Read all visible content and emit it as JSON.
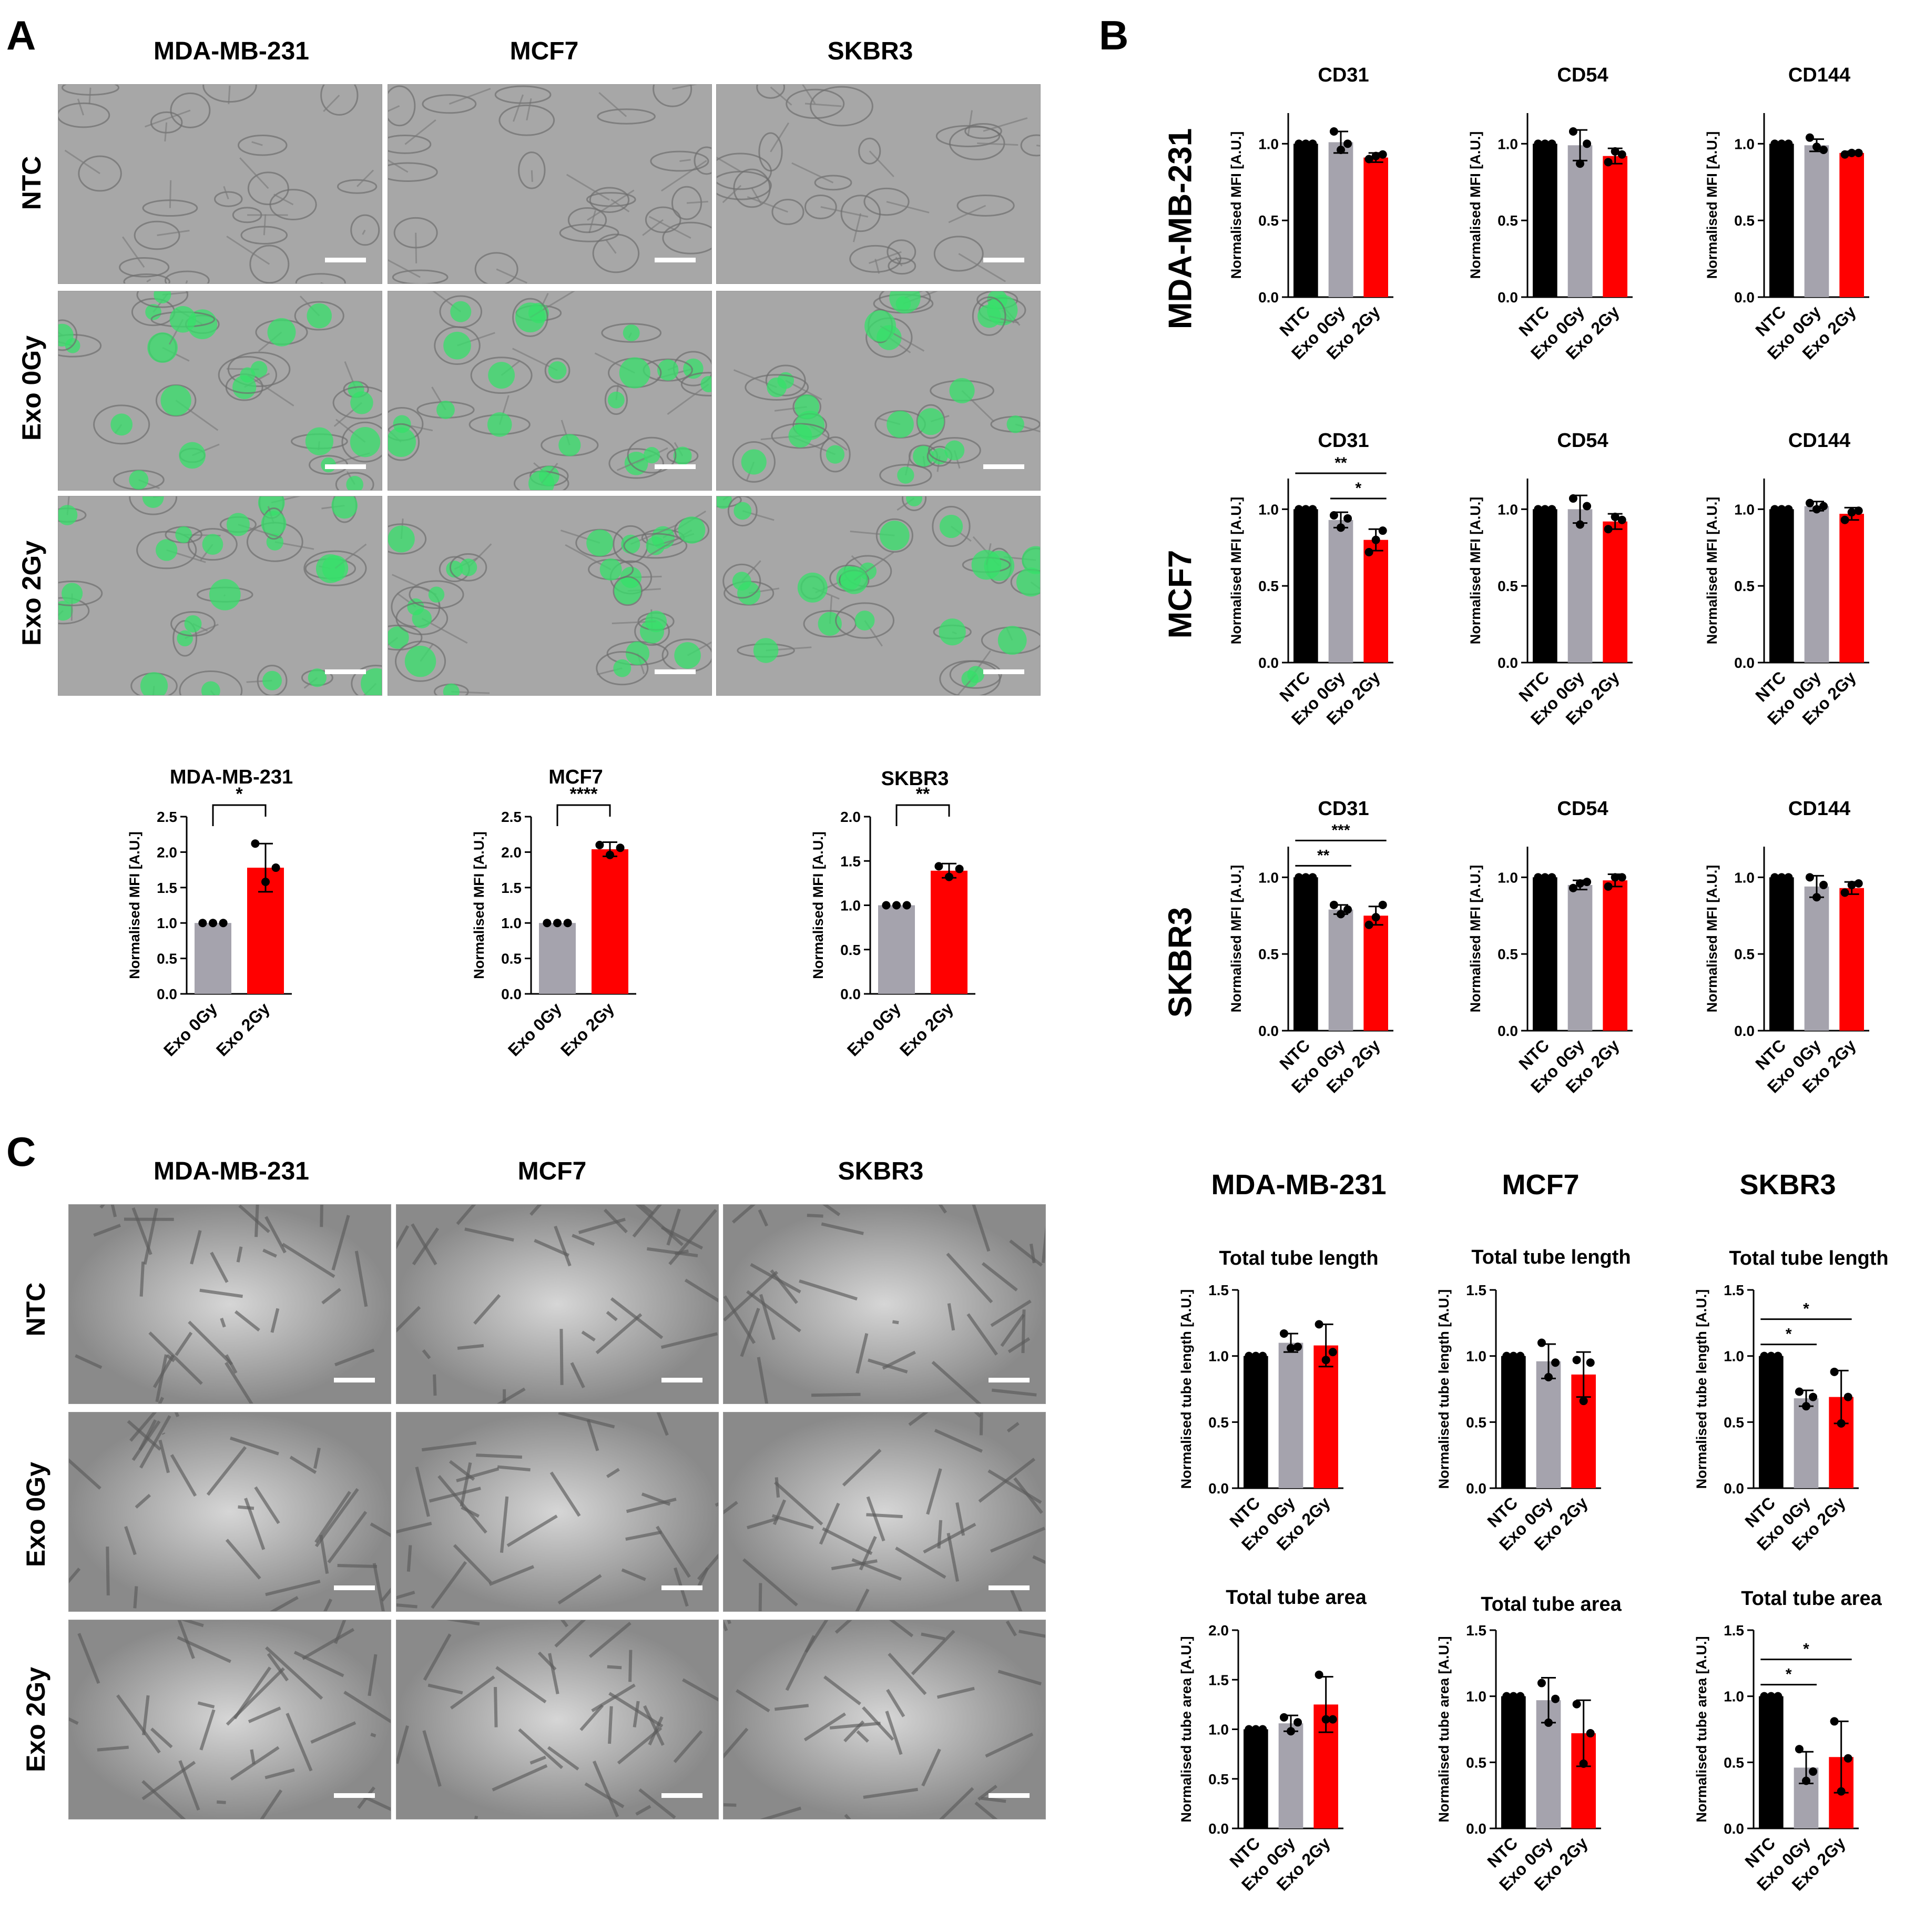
{
  "panels": {
    "a": "A",
    "b": "B",
    "c": "C"
  },
  "panel_a": {
    "columns": [
      "MDA-MB-231",
      "MCF7",
      "SKBR3"
    ],
    "rows": [
      "NTC",
      "Exo 0Gy",
      "Exo 2Gy"
    ]
  },
  "panel_b": {
    "rows": [
      "MDA-MB-231",
      "MCF7",
      "SKBR3"
    ]
  },
  "panel_c": {
    "columns": [
      "MDA-MB-231",
      "MCF7",
      "SKBR3"
    ],
    "rows": [
      "NTC",
      "Exo 0Gy",
      "Exo 2Gy"
    ],
    "chart_columns": [
      "MDA-MB-231",
      "MCF7",
      "SKBR3"
    ]
  },
  "colors": {
    "NTC": "#000000",
    "Exo 0Gy": "#a5a3ad",
    "Exo 2Gy": "#ff0000",
    "fluorescence": "#35e06a"
  },
  "chart_data": [
    {
      "id": "a1",
      "type": "bar",
      "title": "MDA-MB-231",
      "ylabel": "Normalised MFI [A.U.]",
      "ylim": [
        0,
        2.5
      ],
      "ticks": [
        0.0,
        0.5,
        1.0,
        1.5,
        2.0,
        2.5
      ],
      "categories": [
        "Exo 0Gy",
        "Exo 2Gy"
      ],
      "values": [
        1.0,
        1.78
      ],
      "errors": [
        0.0,
        0.34
      ],
      "points": [
        [
          1.0,
          1.0,
          1.0
        ],
        [
          2.12,
          1.58,
          1.78
        ]
      ],
      "sig": [
        {
          "from": 0,
          "to": 1,
          "label": "*"
        }
      ]
    },
    {
      "id": "a2",
      "type": "bar",
      "title": "MCF7",
      "ylabel": "Normalised MFI [A.U.]",
      "ylim": [
        0,
        2.5
      ],
      "ticks": [
        0.0,
        0.5,
        1.0,
        1.5,
        2.0,
        2.5
      ],
      "categories": [
        "Exo 0Gy",
        "Exo 2Gy"
      ],
      "values": [
        1.0,
        2.04
      ],
      "errors": [
        0.0,
        0.1
      ],
      "points": [
        [
          1.0,
          1.0,
          1.0
        ],
        [
          2.1,
          1.96,
          2.06
        ]
      ],
      "sig": [
        {
          "from": 0,
          "to": 1,
          "label": "****"
        }
      ]
    },
    {
      "id": "a3",
      "type": "bar",
      "title": "SKBR3",
      "ylabel": "Normalised MFI [A.U.]",
      "ylim": [
        0,
        2.0
      ],
      "ticks": [
        0.0,
        0.5,
        1.0,
        1.5,
        2.0
      ],
      "categories": [
        "Exo 0Gy",
        "Exo 2Gy"
      ],
      "values": [
        1.0,
        1.39
      ],
      "errors": [
        0.0,
        0.08
      ],
      "points": [
        [
          1.0,
          1.0,
          1.0
        ],
        [
          1.44,
          1.32,
          1.41
        ]
      ],
      "sig": [
        {
          "from": 0,
          "to": 1,
          "label": "**"
        }
      ]
    },
    {
      "id": "b11",
      "type": "bar",
      "title": "CD31",
      "ylabel": "Normalised MFI [A.U.]",
      "ylim": [
        0,
        1.2
      ],
      "ticks": [
        0.0,
        0.5,
        1.0
      ],
      "categories": [
        "NTC",
        "Exo 0Gy",
        "Exo 2Gy"
      ],
      "values": [
        1.0,
        1.01,
        0.91
      ],
      "errors": [
        0.0,
        0.07,
        0.03
      ],
      "points": [
        [
          1.0,
          1.0,
          1.0
        ],
        [
          1.08,
          0.96,
          1.0
        ],
        [
          0.9,
          0.92,
          0.93
        ]
      ],
      "sig": []
    },
    {
      "id": "b12",
      "type": "bar",
      "title": "CD54",
      "ylabel": "Normalised MFI [A.U.]",
      "ylim": [
        0,
        1.2
      ],
      "ticks": [
        0.0,
        0.5,
        1.0
      ],
      "categories": [
        "NTC",
        "Exo 0Gy",
        "Exo 2Gy"
      ],
      "values": [
        1.0,
        0.99,
        0.92
      ],
      "errors": [
        0.0,
        0.1,
        0.05
      ],
      "points": [
        [
          1.0,
          1.0,
          1.0
        ],
        [
          1.08,
          0.87,
          1.0
        ],
        [
          0.88,
          0.95,
          0.93
        ]
      ],
      "sig": []
    },
    {
      "id": "b13",
      "type": "bar",
      "title": "CD144",
      "ylabel": "Normalised MFI [A.U.]",
      "ylim": [
        0,
        1.2
      ],
      "ticks": [
        0.0,
        0.5,
        1.0
      ],
      "categories": [
        "NTC",
        "Exo 0Gy",
        "Exo 2Gy"
      ],
      "values": [
        1.0,
        0.99,
        0.94
      ],
      "errors": [
        0.0,
        0.04,
        0.01
      ],
      "points": [
        [
          1.0,
          1.0,
          1.0
        ],
        [
          1.04,
          0.98,
          0.96
        ],
        [
          0.93,
          0.94,
          0.94
        ]
      ],
      "sig": []
    },
    {
      "id": "b21",
      "type": "bar",
      "title": "CD31",
      "ylabel": "Normalised MFI [A.U.]",
      "ylim": [
        0,
        1.2
      ],
      "ticks": [
        0.0,
        0.5,
        1.0
      ],
      "categories": [
        "NTC",
        "Exo 0Gy",
        "Exo 2Gy"
      ],
      "values": [
        1.0,
        0.93,
        0.8
      ],
      "errors": [
        0.0,
        0.05,
        0.07
      ],
      "points": [
        [
          1.0,
          1.0,
          1.0
        ],
        [
          0.96,
          0.88,
          0.94
        ],
        [
          0.72,
          0.8,
          0.86
        ]
      ],
      "sig": [
        {
          "from": 0,
          "to": 2,
          "label": "**",
          "level": 0
        },
        {
          "from": 1,
          "to": 2,
          "label": "*",
          "level": 1
        }
      ]
    },
    {
      "id": "b22",
      "type": "bar",
      "title": "CD54",
      "ylabel": "Normalised MFI [A.U.]",
      "ylim": [
        0,
        1.2
      ],
      "ticks": [
        0.0,
        0.5,
        1.0
      ],
      "categories": [
        "NTC",
        "Exo 0Gy",
        "Exo 2Gy"
      ],
      "values": [
        1.0,
        1.0,
        0.92
      ],
      "errors": [
        0.0,
        0.09,
        0.05
      ],
      "points": [
        [
          1.0,
          1.0,
          1.0
        ],
        [
          1.07,
          0.9,
          1.02
        ],
        [
          0.87,
          0.95,
          0.93
        ]
      ],
      "sig": []
    },
    {
      "id": "b23",
      "type": "bar",
      "title": "CD144",
      "ylabel": "Normalised MFI [A.U.]",
      "ylim": [
        0,
        1.2
      ],
      "ticks": [
        0.0,
        0.5,
        1.0
      ],
      "categories": [
        "NTC",
        "Exo 0Gy",
        "Exo 2Gy"
      ],
      "values": [
        1.0,
        1.02,
        0.97
      ],
      "errors": [
        0.0,
        0.03,
        0.04
      ],
      "points": [
        [
          1.0,
          1.0,
          1.0
        ],
        [
          1.04,
          1.0,
          1.02
        ],
        [
          0.93,
          0.98,
          0.99
        ]
      ],
      "sig": []
    },
    {
      "id": "b31",
      "type": "bar",
      "title": "CD31",
      "ylabel": "Normalised MFI [A.U.]",
      "ylim": [
        0,
        1.2
      ],
      "ticks": [
        0.0,
        0.5,
        1.0
      ],
      "categories": [
        "NTC",
        "Exo 0Gy",
        "Exo 2Gy"
      ],
      "values": [
        1.0,
        0.79,
        0.75
      ],
      "errors": [
        0.0,
        0.03,
        0.06
      ],
      "points": [
        [
          1.0,
          1.0,
          1.0
        ],
        [
          0.82,
          0.76,
          0.79
        ],
        [
          0.69,
          0.74,
          0.82
        ]
      ],
      "sig": [
        {
          "from": 0,
          "to": 1,
          "label": "**",
          "level": 0
        },
        {
          "from": 0,
          "to": 2,
          "label": "***",
          "level": 1
        }
      ]
    },
    {
      "id": "b32",
      "type": "bar",
      "title": "CD54",
      "ylabel": "Normalised MFI [A.U.]",
      "ylim": [
        0,
        1.2
      ],
      "ticks": [
        0.0,
        0.5,
        1.0
      ],
      "categories": [
        "NTC",
        "Exo 0Gy",
        "Exo 2Gy"
      ],
      "values": [
        1.0,
        0.95,
        0.98
      ],
      "errors": [
        0.0,
        0.03,
        0.04
      ],
      "points": [
        [
          1.0,
          1.0,
          1.0
        ],
        [
          0.93,
          0.96,
          0.97
        ],
        [
          0.94,
          1.0,
          1.0
        ]
      ],
      "sig": []
    },
    {
      "id": "b33",
      "type": "bar",
      "title": "CD144",
      "ylabel": "Normalised MFI [A.U.]",
      "ylim": [
        0,
        1.2
      ],
      "ticks": [
        0.0,
        0.5,
        1.0
      ],
      "categories": [
        "NTC",
        "Exo 0Gy",
        "Exo 2Gy"
      ],
      "values": [
        1.0,
        0.94,
        0.93
      ],
      "errors": [
        0.0,
        0.07,
        0.04
      ],
      "points": [
        [
          1.0,
          1.0,
          1.0
        ],
        [
          1.0,
          0.87,
          0.95
        ],
        [
          0.9,
          0.95,
          0.96
        ]
      ],
      "sig": []
    },
    {
      "id": "c11",
      "type": "bar",
      "title": "Total tube length",
      "ylabel": "Normalised tube length [A.U.]",
      "ylim": [
        0,
        1.5
      ],
      "ticks": [
        0.0,
        0.5,
        1.0,
        1.5
      ],
      "categories": [
        "NTC",
        "Exo 0Gy",
        "Exo 2Gy"
      ],
      "values": [
        1.0,
        1.1,
        1.08
      ],
      "errors": [
        0.0,
        0.07,
        0.16
      ],
      "points": [
        [
          1.0,
          1.0,
          1.0
        ],
        [
          1.17,
          1.06,
          1.07
        ],
        [
          1.24,
          0.97,
          1.03
        ]
      ],
      "sig": []
    },
    {
      "id": "c12",
      "type": "bar",
      "title": "Total tube length",
      "ylabel": "Normalised tube length [A.U.]",
      "ylim": [
        0,
        1.5
      ],
      "ticks": [
        0.0,
        0.5,
        1.0,
        1.5
      ],
      "categories": [
        "NTC",
        "Exo 0Gy",
        "Exo 2Gy"
      ],
      "values": [
        1.0,
        0.96,
        0.86
      ],
      "errors": [
        0.0,
        0.13,
        0.17
      ],
      "points": [
        [
          1.0,
          1.0,
          1.0
        ],
        [
          1.1,
          0.84,
          0.95
        ],
        [
          0.97,
          0.66,
          0.95
        ]
      ],
      "sig": []
    },
    {
      "id": "c13",
      "type": "bar",
      "title": "Total tube length",
      "ylabel": "Normalised tube length [A.U.]",
      "ylim": [
        0,
        1.5
      ],
      "ticks": [
        0.0,
        0.5,
        1.0,
        1.5
      ],
      "categories": [
        "NTC",
        "Exo 0Gy",
        "Exo 2Gy"
      ],
      "values": [
        1.0,
        0.68,
        0.69
      ],
      "errors": [
        0.0,
        0.06,
        0.2
      ],
      "points": [
        [
          1.0,
          1.0,
          1.0
        ],
        [
          0.73,
          0.62,
          0.69
        ],
        [
          0.88,
          0.49,
          0.69
        ]
      ],
      "sig": [
        {
          "from": 0,
          "to": 1,
          "label": "*",
          "level": 0
        },
        {
          "from": 0,
          "to": 2,
          "label": "*",
          "level": 1
        }
      ]
    },
    {
      "id": "c21",
      "type": "bar",
      "title": "Total tube area",
      "ylabel": "Normalised tube area [A.U.]",
      "ylim": [
        0,
        2.0
      ],
      "ticks": [
        0.0,
        0.5,
        1.0,
        1.5,
        2.0
      ],
      "categories": [
        "NTC",
        "Exo 0Gy",
        "Exo 2Gy"
      ],
      "values": [
        1.0,
        1.06,
        1.25
      ],
      "errors": [
        0.0,
        0.08,
        0.28
      ],
      "points": [
        [
          1.0,
          1.0,
          1.0
        ],
        [
          1.12,
          0.98,
          1.07
        ],
        [
          1.55,
          1.1,
          1.1
        ]
      ],
      "sig": []
    },
    {
      "id": "c22",
      "type": "bar",
      "title": "Total tube area",
      "ylabel": "Normalised tube area [A.U.]",
      "ylim": [
        0,
        1.5
      ],
      "ticks": [
        0.0,
        0.5,
        1.0,
        1.5
      ],
      "categories": [
        "NTC",
        "Exo 0Gy",
        "Exo 2Gy"
      ],
      "values": [
        1.0,
        0.97,
        0.72
      ],
      "errors": [
        0.0,
        0.17,
        0.25
      ],
      "points": [
        [
          1.0,
          1.0,
          1.0
        ],
        [
          1.1,
          0.8,
          0.98
        ],
        [
          0.94,
          0.49,
          0.72
        ]
      ],
      "sig": []
    },
    {
      "id": "c23",
      "type": "bar",
      "title": "Total tube area",
      "ylabel": "Normalised tube area [A.U.]",
      "ylim": [
        0,
        1.5
      ],
      "ticks": [
        0.0,
        0.5,
        1.0,
        1.5
      ],
      "categories": [
        "NTC",
        "Exo 0Gy",
        "Exo 2Gy"
      ],
      "values": [
        1.0,
        0.46,
        0.54
      ],
      "errors": [
        0.0,
        0.12,
        0.27
      ],
      "points": [
        [
          1.0,
          1.0,
          1.0
        ],
        [
          0.6,
          0.36,
          0.43
        ],
        [
          0.81,
          0.28,
          0.53
        ]
      ],
      "sig": [
        {
          "from": 0,
          "to": 1,
          "label": "*",
          "level": 0
        },
        {
          "from": 0,
          "to": 2,
          "label": "*",
          "level": 1
        }
      ]
    }
  ]
}
